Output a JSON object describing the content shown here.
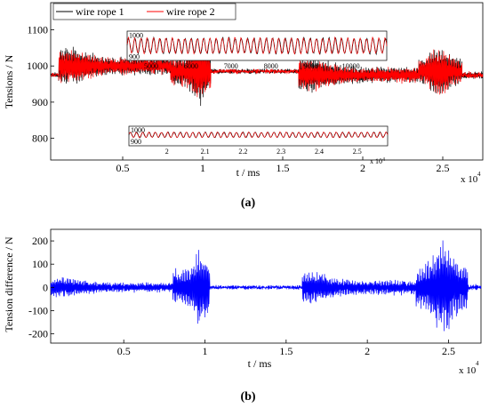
{
  "chart_data": [
    {
      "type": "line",
      "panel_label": "(a)",
      "xlabel": "t / ms",
      "ylabel": "Tensions / N",
      "x_exponent_label": "x 10",
      "x_exponent_power": "4",
      "xlim": [
        0.05,
        2.75
      ],
      "ylim": [
        740,
        1175
      ],
      "xticks": [
        {
          "value": 0.5,
          "label": "0.5"
        },
        {
          "value": 1.0,
          "label": "1"
        },
        {
          "value": 1.5,
          "label": "1.5"
        },
        {
          "value": 2.0,
          "label": "2"
        },
        {
          "value": 2.5,
          "label": "2.5"
        }
      ],
      "yticks": [
        {
          "value": 800,
          "label": "800"
        },
        {
          "value": 900,
          "label": "900"
        },
        {
          "value": 1000,
          "label": "1000"
        },
        {
          "value": 1100,
          "label": "1100"
        }
      ],
      "legend": [
        "wire rope 1",
        "wire rope 2"
      ],
      "series": [
        {
          "name": "wire rope 1",
          "color": "#000000"
        },
        {
          "name": "wire rope 2",
          "color": "#ff0000"
        }
      ],
      "segments": [
        {
          "from": 0.05,
          "to": 0.1,
          "mean": 975,
          "amp": 4
        },
        {
          "from": 0.1,
          "to": 0.8,
          "mean": 1000,
          "amp": 55,
          "peak_at": 0.14
        },
        {
          "from": 0.8,
          "to": 1.05,
          "mean": 985,
          "amp": 95,
          "peak_at": 0.98
        },
        {
          "from": 1.05,
          "to": 1.6,
          "mean": 985,
          "amp": 4
        },
        {
          "from": 1.6,
          "to": 2.35,
          "mean": 975,
          "amp": 50,
          "peak_at": 1.65
        },
        {
          "from": 2.35,
          "to": 2.62,
          "mean": 985,
          "amp": 80,
          "peak_at": 2.48
        },
        {
          "from": 2.62,
          "to": 2.75,
          "mean": 975,
          "amp": 8
        }
      ],
      "insets": [
        {
          "position_word": "top",
          "yticks": [
            {
              "value": 1000,
              "label": "1000"
            },
            {
              "value": 900,
              "label": "900"
            }
          ],
          "ylim": [
            880,
            1020
          ],
          "xlim": [
            4400,
            10900
          ],
          "xticks": [
            {
              "value": 5000,
              "label": "5000"
            },
            {
              "value": 6000,
              "label": "6000"
            },
            {
              "value": 7000,
              "label": "7000"
            },
            {
              "value": 8000,
              "label": "8000"
            },
            {
              "value": 9000,
              "label": "9000"
            },
            {
              "value": 10000,
              "label": "10000"
            }
          ],
          "mean": 950,
          "amp": 40
        },
        {
          "position_word": "bottom",
          "yticks": [
            {
              "value": 1000,
              "label": "1000"
            },
            {
              "value": 900,
              "label": "900"
            }
          ],
          "ylim": [
            860,
            1030
          ],
          "xlim": [
            1.9,
            2.58
          ],
          "xticks": [
            {
              "value": 2.0,
              "label": "2"
            },
            {
              "value": 2.1,
              "label": "2.1"
            },
            {
              "value": 2.2,
              "label": "2.2"
            },
            {
              "value": 2.3,
              "label": "2.3"
            },
            {
              "value": 2.4,
              "label": "2.4"
            },
            {
              "value": 2.5,
              "label": "2.5"
            }
          ],
          "x_exponent_label": "x 10",
          "x_exponent_power": "4",
          "mean": 955,
          "amp": 25
        }
      ]
    },
    {
      "type": "line",
      "panel_label": "(b)",
      "xlabel": "t / ms",
      "ylabel": "Tension difference / N",
      "x_exponent_label": "x 10",
      "x_exponent_power": "4",
      "xlim": [
        0.05,
        2.7
      ],
      "ylim": [
        -240,
        250
      ],
      "xticks": [
        {
          "value": 0.5,
          "label": "0.5"
        },
        {
          "value": 1.0,
          "label": "1"
        },
        {
          "value": 1.5,
          "label": "1.5"
        },
        {
          "value": 2.0,
          "label": "2"
        },
        {
          "value": 2.5,
          "label": "2.5"
        }
      ],
      "yticks": [
        {
          "value": -200,
          "label": "-200"
        },
        {
          "value": -100,
          "label": "-100"
        },
        {
          "value": 0,
          "label": "0"
        },
        {
          "value": 100,
          "label": "100"
        },
        {
          "value": 200,
          "label": "200"
        }
      ],
      "series": [
        {
          "color": "#0000ff"
        }
      ],
      "segments": [
        {
          "from": 0.05,
          "to": 0.8,
          "mean": 0,
          "amp": 45,
          "peak_at": 0.12
        },
        {
          "from": 0.8,
          "to": 1.03,
          "mean": 0,
          "amp": 180,
          "peak_at": 0.97
        },
        {
          "from": 1.03,
          "to": 1.6,
          "mean": 0,
          "amp": 6
        },
        {
          "from": 1.6,
          "to": 2.3,
          "mean": 0,
          "amp": 70,
          "peak_at": 1.65
        },
        {
          "from": 2.3,
          "to": 2.62,
          "mean": 0,
          "amp": 215,
          "peak_at": 2.47
        },
        {
          "from": 2.62,
          "to": 2.7,
          "mean": 0,
          "amp": 10
        }
      ]
    }
  ]
}
